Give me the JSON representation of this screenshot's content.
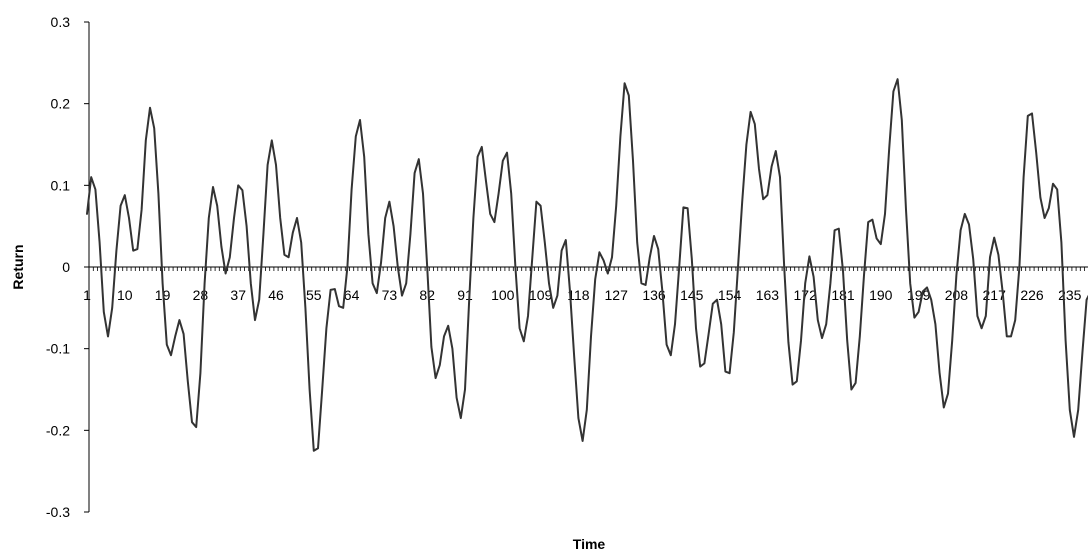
{
  "chart_data": {
    "type": "line",
    "title": "",
    "xlabel": "Time",
    "ylabel": "Return",
    "ylim": [
      -0.3,
      0.3
    ],
    "y_ticks": [
      0.3,
      0.2,
      0.1,
      0,
      -0.1,
      -0.2,
      -0.3
    ],
    "y_tick_labels": [
      "0.3",
      "0.2",
      "0.1",
      "0",
      "-0.1",
      "-0.2",
      "-0.3"
    ],
    "x_range": [
      1,
      240
    ],
    "x_tick_labels": [
      "1",
      "10",
      "19",
      "28",
      "37",
      "46",
      "55",
      "64",
      "73",
      "82",
      "91",
      "100",
      "109",
      "118",
      "127",
      "136",
      "145",
      "154",
      "163",
      "172",
      "181",
      "190",
      "199",
      "208",
      "217",
      "226",
      "235"
    ],
    "grid": false,
    "legend": "none",
    "line_color": "#333333",
    "series": [
      {
        "values": [
          0.065,
          0.11,
          0.095,
          0.03,
          -0.055,
          -0.085,
          -0.05,
          0.02,
          0.075,
          0.088,
          0.06,
          0.02,
          0.022,
          0.07,
          0.155,
          0.195,
          0.17,
          0.09,
          -0.02,
          -0.095,
          -0.108,
          -0.085,
          -0.065,
          -0.082,
          -0.14,
          -0.19,
          -0.196,
          -0.13,
          -0.02,
          0.06,
          0.098,
          0.075,
          0.025,
          -0.008,
          0.012,
          0.06,
          0.1,
          0.094,
          0.05,
          -0.02,
          -0.065,
          -0.04,
          0.04,
          0.125,
          0.155,
          0.125,
          0.06,
          0.015,
          0.012,
          0.042,
          0.06,
          0.03,
          -0.05,
          -0.15,
          -0.225,
          -0.222,
          -0.15,
          -0.075,
          -0.028,
          -0.027,
          -0.048,
          -0.05,
          0.0,
          0.095,
          0.16,
          0.18,
          0.135,
          0.04,
          -0.02,
          -0.032,
          0.005,
          0.06,
          0.08,
          0.05,
          0.0,
          -0.035,
          -0.02,
          0.04,
          0.115,
          0.132,
          0.09,
          0.0,
          -0.098,
          -0.136,
          -0.12,
          -0.085,
          -0.072,
          -0.1,
          -0.16,
          -0.185,
          -0.15,
          -0.04,
          0.06,
          0.135,
          0.147,
          0.105,
          0.065,
          0.055,
          0.09,
          0.13,
          0.14,
          0.09,
          0.0,
          -0.075,
          -0.091,
          -0.06,
          0.01,
          0.08,
          0.075,
          0.03,
          -0.02,
          -0.05,
          -0.035,
          0.02,
          0.033,
          -0.03,
          -0.11,
          -0.185,
          -0.213,
          -0.175,
          -0.085,
          -0.015,
          0.018,
          0.008,
          -0.008,
          0.012,
          0.075,
          0.16,
          0.225,
          0.21,
          0.13,
          0.03,
          -0.02,
          -0.022,
          0.012,
          0.038,
          0.022,
          -0.03,
          -0.095,
          -0.108,
          -0.07,
          0.0,
          0.073,
          0.072,
          0.01,
          -0.075,
          -0.122,
          -0.118,
          -0.082,
          -0.045,
          -0.04,
          -0.07,
          -0.128,
          -0.13,
          -0.08,
          0.0,
          0.08,
          0.15,
          0.19,
          0.175,
          0.12,
          0.083,
          0.088,
          0.123,
          0.142,
          0.11,
          0.0,
          -0.092,
          -0.144,
          -0.14,
          -0.09,
          -0.02,
          0.013,
          -0.012,
          -0.065,
          -0.087,
          -0.07,
          -0.02,
          0.045,
          0.047,
          -0.005,
          -0.09,
          -0.15,
          -0.142,
          -0.085,
          -0.01,
          0.055,
          0.058,
          0.035,
          0.028,
          0.065,
          0.145,
          0.215,
          0.23,
          0.18,
          0.07,
          -0.02,
          -0.062,
          -0.055,
          -0.03,
          -0.025,
          -0.04,
          -0.07,
          -0.13,
          -0.172,
          -0.155,
          -0.09,
          -0.01,
          0.045,
          0.065,
          0.052,
          0.01,
          -0.06,
          -0.075,
          -0.06,
          0.012,
          0.036,
          0.015,
          -0.03,
          -0.085,
          -0.085,
          -0.065,
          0.0,
          0.11,
          0.185,
          0.188,
          0.14,
          0.085,
          0.06,
          0.072,
          0.102,
          0.095,
          0.03,
          -0.09,
          -0.175,
          -0.208,
          -0.175,
          -0.105,
          -0.04,
          -0.03,
          -0.052,
          -0.085,
          -0.075,
          -0.045
        ]
      }
    ]
  }
}
